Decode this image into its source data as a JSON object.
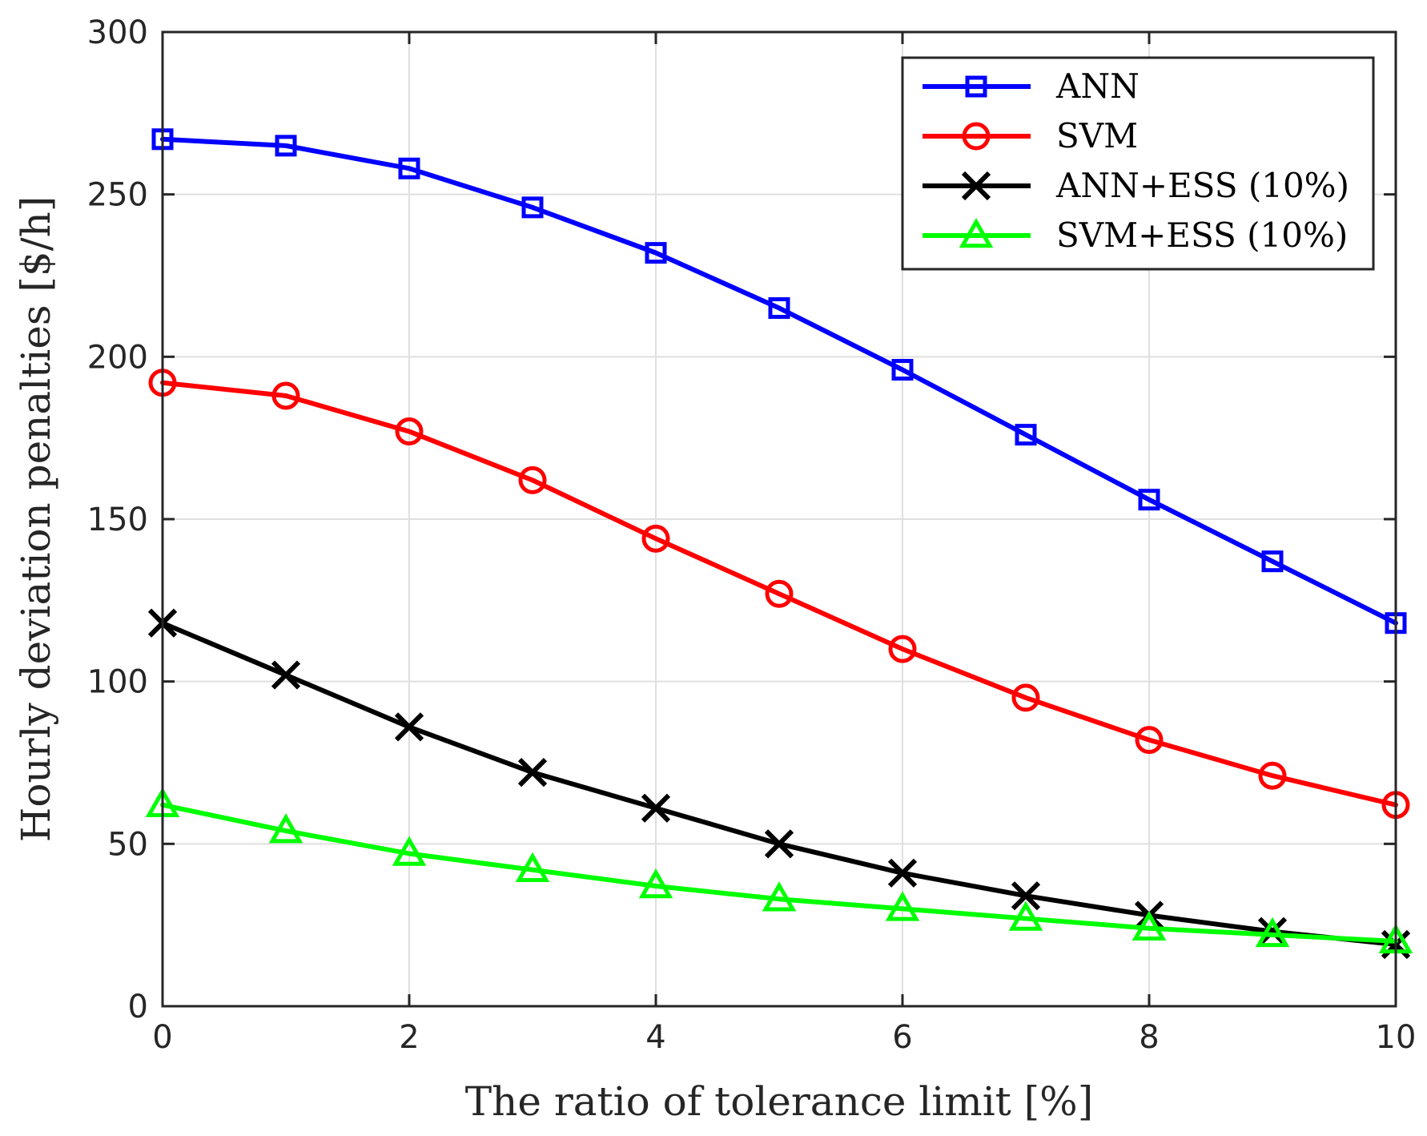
{
  "chart_data": {
    "type": "line",
    "title": "",
    "xlabel": "The ratio of tolerance limit [%]",
    "ylabel": "Hourly deviation penalties [$/h]",
    "xlim": [
      0,
      10
    ],
    "ylim": [
      0,
      300
    ],
    "xticks": [
      0,
      2,
      4,
      6,
      8,
      10
    ],
    "yticks": [
      0,
      50,
      100,
      150,
      200,
      250,
      300
    ],
    "grid": true,
    "legend_position": "top-right",
    "x": [
      0,
      1,
      2,
      3,
      4,
      5,
      6,
      7,
      8,
      9,
      10
    ],
    "series": [
      {
        "name": "ANN",
        "color": "#0000ff",
        "marker": "square",
        "values": [
          267,
          265,
          258,
          246,
          232,
          215,
          196,
          176,
          156,
          137,
          118
        ]
      },
      {
        "name": "SVM",
        "color": "#ff0000",
        "marker": "circle",
        "values": [
          192,
          188,
          177,
          162,
          144,
          127,
          110,
          95,
          82,
          71,
          62
        ]
      },
      {
        "name": "ANN+ESS (10%)",
        "color": "#000000",
        "marker": "x",
        "values": [
          118,
          102,
          86,
          72,
          61,
          50,
          41,
          34,
          28,
          23,
          19
        ]
      },
      {
        "name": "SVM+ESS (10%)",
        "color": "#00ff00",
        "marker": "triangle",
        "values": [
          62,
          54,
          47,
          42,
          37,
          33,
          30,
          27,
          24,
          22,
          20
        ]
      }
    ]
  }
}
